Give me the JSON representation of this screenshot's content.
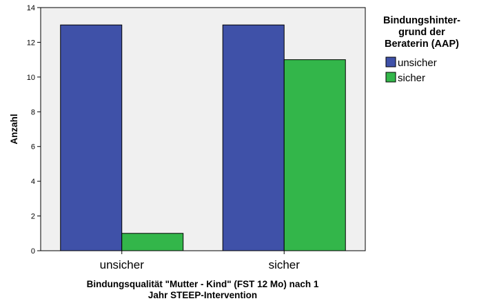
{
  "chart_data": {
    "type": "bar",
    "categories": [
      "unsicher",
      "sicher"
    ],
    "series": [
      {
        "name": "unsicher",
        "values": [
          13,
          13
        ],
        "color": "#3f51a8"
      },
      {
        "name": "sicher",
        "values": [
          1,
          11
        ],
        "color": "#33b64a"
      }
    ],
    "xlabel_lines": [
      "Bindungsqualität \"Mutter - Kind\" (FST 12 Mo) nach 1",
      "Jahr STEEP-Intervention"
    ],
    "ylabel": "Anzahl",
    "ylim": [
      0,
      14
    ],
    "yticks": [
      0,
      2,
      4,
      6,
      8,
      10,
      12,
      14
    ],
    "grid": false,
    "plot_background": "#f0f0f0",
    "legend": {
      "title_lines": [
        "Bindungshinter-",
        "grund der",
        "Beraterin (AAP)"
      ],
      "placement": "right"
    }
  }
}
